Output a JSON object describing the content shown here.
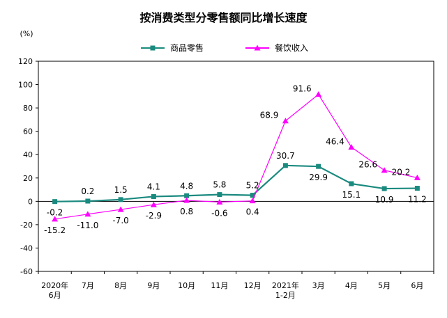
{
  "chart_data": {
    "type": "line",
    "title": "按消费类型分零售额同比增长速度",
    "y_unit": "(%)",
    "ylim": [
      -60,
      120
    ],
    "ytick_step": 20,
    "grid": false,
    "legend_position": "top",
    "x_ticks": [
      [
        "2020年",
        "6月"
      ],
      [
        "7月"
      ],
      [
        "8月"
      ],
      [
        "9月"
      ],
      [
        "10月"
      ],
      [
        "11月"
      ],
      [
        "12月"
      ],
      [
        "2021年",
        "1-2月"
      ],
      [
        "3月"
      ],
      [
        "4月"
      ],
      [
        "5月"
      ],
      [
        "6月"
      ]
    ],
    "series": [
      {
        "name": "商品零售",
        "color": "#1a8a7f",
        "marker": "square",
        "values": [
          -0.2,
          0.2,
          1.5,
          4.1,
          4.8,
          5.8,
          5.2,
          30.7,
          29.9,
          15.1,
          10.9,
          11.2
        ],
        "labels": [
          "-0.2",
          "0.2",
          "1.5",
          "4.1",
          "4.8",
          "5.8",
          "5.2",
          "30.7",
          "29.9",
          "15.1",
          "10.9",
          "11.2"
        ],
        "label_pos": [
          "below",
          "above",
          "above",
          "above",
          "above",
          "above",
          "above",
          "above",
          "below",
          "below",
          "below",
          "below"
        ]
      },
      {
        "name": "餐饮收入",
        "color": "#ff00ff",
        "marker": "triangle",
        "values": [
          -15.2,
          -11.0,
          -7.0,
          -2.9,
          0.8,
          -0.6,
          0.4,
          68.9,
          91.6,
          46.4,
          26.6,
          20.2
        ],
        "labels": [
          "-15.2",
          "-11.0",
          "-7.0",
          "-2.9",
          "0.8",
          "-0.6",
          "0.4",
          "68.9",
          "91.6",
          "46.4",
          "26.6",
          "20.2"
        ],
        "label_pos": [
          "below",
          "below",
          "below",
          "below",
          "below",
          "below",
          "below",
          "left",
          "left",
          "left",
          "left",
          "left"
        ]
      }
    ]
  }
}
